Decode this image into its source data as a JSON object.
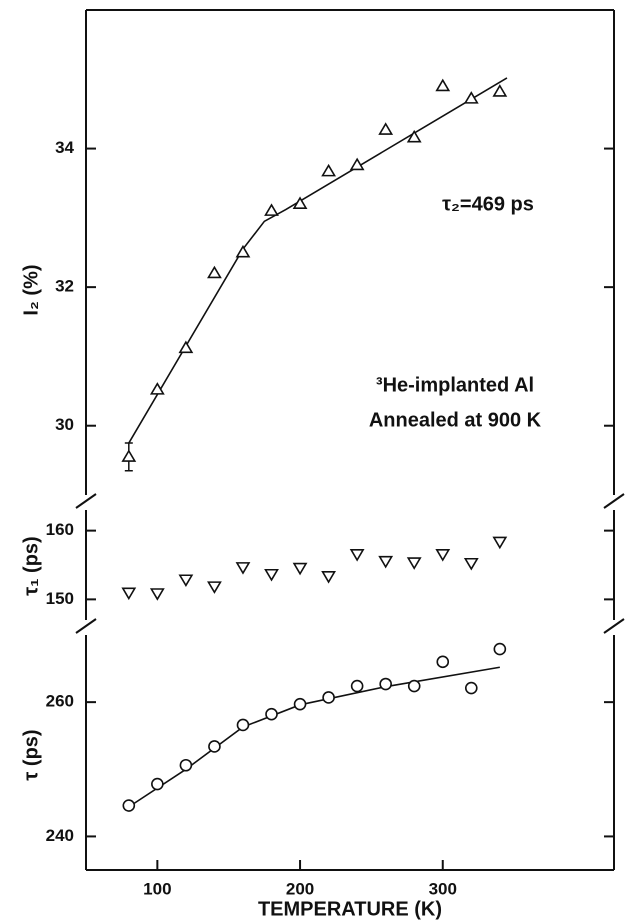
{
  "chart_data": [
    {
      "type": "scatter",
      "ylabel": "I₂ (%)",
      "ylim": [
        29,
        36
      ],
      "yticks": [
        30,
        32,
        34
      ],
      "annotations": [
        "τ₂=469 ps",
        "³He-implanted Al",
        "Annealed at 900 K"
      ],
      "marker": "triangle-up",
      "color": "#111111",
      "x": [
        80,
        100,
        120,
        140,
        160,
        180,
        200,
        220,
        240,
        260,
        280,
        300,
        320,
        340
      ],
      "values": [
        29.55,
        30.52,
        31.12,
        32.2,
        32.5,
        33.1,
        33.2,
        33.67,
        33.76,
        34.27,
        34.16,
        34.9,
        34.72,
        34.82
      ],
      "errors": [
        0.2,
        null,
        null,
        null,
        null,
        null,
        null,
        null,
        null,
        null,
        null,
        null,
        null,
        null
      ],
      "fit": {
        "x": [
          80,
          160,
          175,
          190,
          345
        ],
        "values": [
          29.75,
          32.55,
          32.95,
          33.12,
          35.02
        ]
      }
    },
    {
      "type": "scatter",
      "ylabel": "τ₁ (ps)",
      "ylim": [
        147,
        163
      ],
      "yticks": [
        150,
        160
      ],
      "marker": "triangle-down",
      "color": "#111111",
      "x": [
        80,
        100,
        120,
        140,
        160,
        180,
        200,
        220,
        240,
        260,
        280,
        300,
        320,
        340
      ],
      "values": [
        151,
        150.9,
        152.9,
        151.9,
        154.7,
        153.7,
        154.6,
        153.4,
        156.6,
        155.6,
        155.4,
        156.6,
        155.3,
        158.4
      ]
    },
    {
      "type": "scatter",
      "ylabel": "τ (ps)",
      "xlabel": "TEMPERATURE (K)",
      "ylim": [
        235,
        270
      ],
      "yticks": [
        240,
        260
      ],
      "xlim": [
        50,
        420
      ],
      "xticks": [
        100,
        200,
        300
      ],
      "marker": "circle",
      "color": "#111111",
      "x": [
        80,
        100,
        120,
        140,
        160,
        180,
        200,
        220,
        240,
        260,
        280,
        300,
        320,
        340
      ],
      "values": [
        244.6,
        247.8,
        250.6,
        253.4,
        256.6,
        258.2,
        259.7,
        260.7,
        262.4,
        262.7,
        262.4,
        266,
        262.1,
        267.9
      ],
      "fit": {
        "x": [
          80,
          120,
          160,
          200,
          260,
          340
        ],
        "values": [
          244.4,
          250,
          256.3,
          259.6,
          262.3,
          265.2
        ]
      }
    }
  ]
}
